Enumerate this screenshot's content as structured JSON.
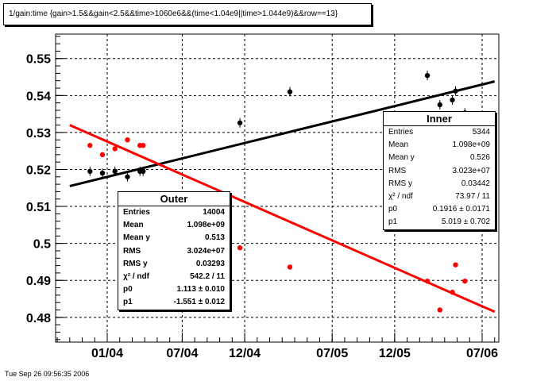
{
  "title": "1/gain:time {gain>1.5&&gain<2.5&&time>1060e6&&(time<1.04e9||time>1.044e9)&&row==13}",
  "timestamp": "Tue Sep 26 09:56:35 2006",
  "colors": {
    "inner": "#000000",
    "outer": "#ff0000"
  },
  "chart_data": {
    "type": "scatter",
    "title": "1/gain:time {gain>1.5&&gain<2.5&&time>1060e6&&(time<1.04e9||time>1.044e9)&&row==13}",
    "xlabel": "",
    "ylabel": "",
    "x_ticks": [
      "01/04",
      "07/04",
      "12/04",
      "07/05",
      "12/05",
      "07/06"
    ],
    "y_ticks": [
      "0.48",
      "0.49",
      "0.5",
      "0.51",
      "0.52",
      "0.53",
      "0.54",
      "0.55"
    ],
    "ylim": [
      0.4733,
      0.5566
    ],
    "grid": true,
    "series": [
      {
        "name": "Inner",
        "color": "#000000",
        "error_bars": true,
        "points": [
          [
            "12/03",
            0.5195
          ],
          [
            "01/04",
            0.519
          ],
          [
            "02/04",
            0.5195
          ],
          [
            "03/04",
            0.518
          ],
          [
            "04/04",
            0.5195
          ],
          [
            "04/04",
            0.5195
          ],
          [
            "12/04",
            0.5326
          ],
          [
            "04/05",
            0.541
          ],
          [
            "03/06",
            0.5454
          ],
          [
            "04/06",
            0.5375
          ],
          [
            "05/06",
            0.5388
          ],
          [
            "05/06",
            0.5412
          ],
          [
            "06/06",
            0.5353
          ]
        ],
        "fit_line": [
          [
            "10/03",
            0.5155
          ],
          [
            "08/06",
            0.5438
          ]
        ]
      },
      {
        "name": "Outer",
        "color": "#ff0000",
        "error_bars": false,
        "points": [
          [
            "12/03",
            0.5265
          ],
          [
            "01/04",
            0.524
          ],
          [
            "02/04",
            0.5256
          ],
          [
            "03/04",
            0.528
          ],
          [
            "04/04",
            0.5265
          ],
          [
            "04/04",
            0.5265
          ],
          [
            "12/04",
            0.4988
          ],
          [
            "04/05",
            0.4936
          ],
          [
            "03/06",
            0.4898
          ],
          [
            "04/06",
            0.482
          ],
          [
            "05/06",
            0.4868
          ],
          [
            "05/06",
            0.4942
          ],
          [
            "06/06",
            0.4898
          ]
        ],
        "fit_line": [
          [
            "10/03",
            0.532
          ],
          [
            "08/06",
            0.4815
          ]
        ]
      }
    ]
  },
  "stats": {
    "outer": {
      "name": "Outer",
      "entries": [
        "Entries",
        "14004"
      ],
      "mean": [
        "Mean",
        "1.098e+09"
      ],
      "mean_y": [
        "Mean y",
        "0.513"
      ],
      "rms": [
        "RMS",
        "3.024e+07"
      ],
      "rms_y": [
        "RMS y",
        "0.03293"
      ],
      "chi2": [
        "χ² / ndf",
        "542.2 / 11"
      ],
      "p0": [
        "p0",
        "1.113 ± 0.010"
      ],
      "p1": [
        "p1",
        "-1.551 ± 0.012"
      ]
    },
    "inner": {
      "name": "Inner",
      "entries": [
        "Entries",
        "5344"
      ],
      "mean": [
        "Mean",
        "1.098e+09"
      ],
      "mean_y": [
        "Mean y",
        "0.526"
      ],
      "rms": [
        "RMS",
        "3.023e+07"
      ],
      "rms_y": [
        "RMS y",
        "0.03442"
      ],
      "chi2": [
        "χ² / ndf",
        "73.97 / 11"
      ],
      "p0": [
        "p0",
        "0.1916 ± 0.0171"
      ],
      "p1": [
        "p1",
        "5.019 ± 0.702"
      ]
    }
  }
}
